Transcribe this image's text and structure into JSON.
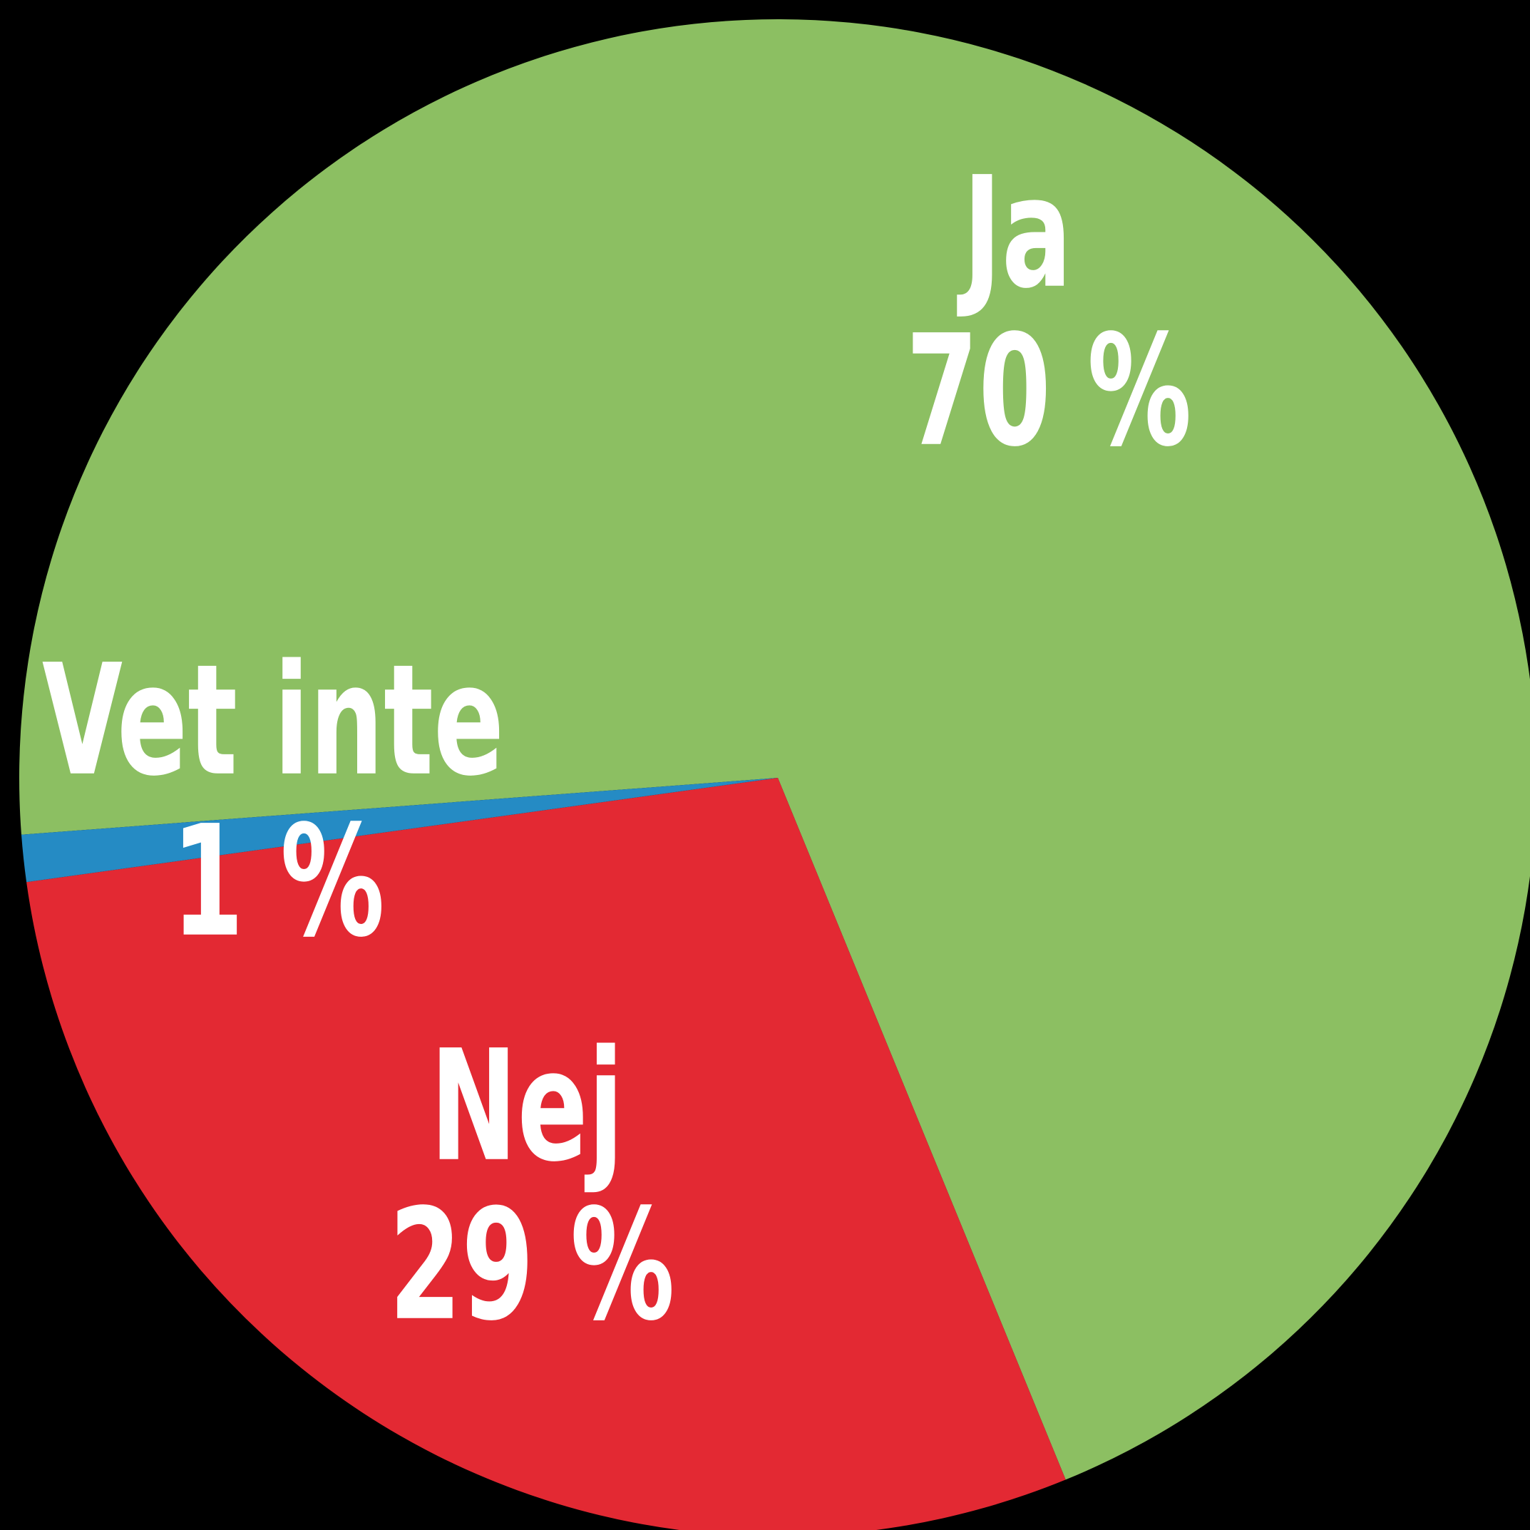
{
  "chart_data": {
    "type": "pie",
    "categories": [
      "Ja",
      "Nej",
      "Vet inte"
    ],
    "values": [
      70,
      29,
      1
    ],
    "value_labels": [
      "70 %",
      "29 %",
      "1 %"
    ],
    "colors": [
      "#8cbf62",
      "#e32933",
      "#258bc4"
    ]
  }
}
